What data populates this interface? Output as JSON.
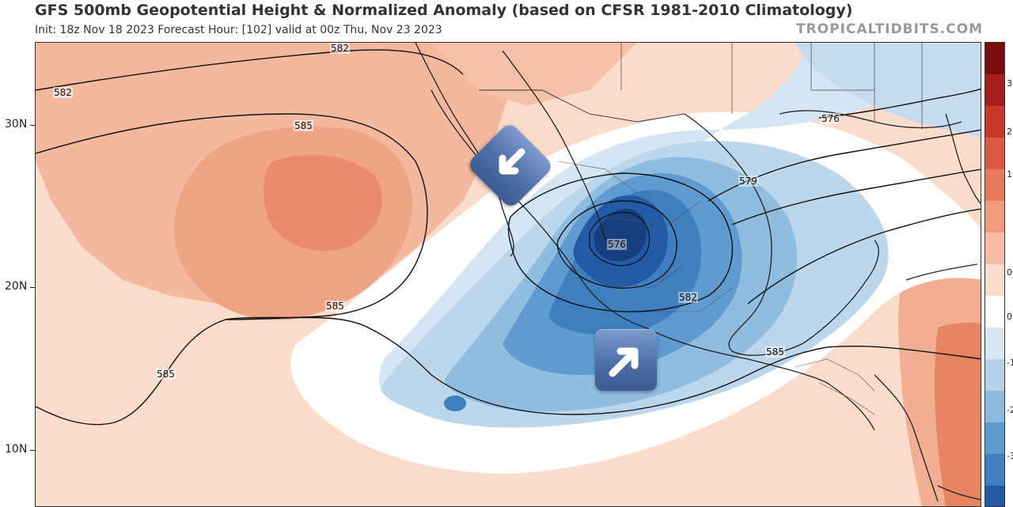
{
  "header": {
    "title": "GFS 500mb Geopotential Height & Normalized Anomaly (based on CFSR 1981-2010 Climatology)",
    "subtitle": "Init: 18z Nov 18 2023   Forecast Hour: [102]   valid at 00z Thu, Nov 23 2023",
    "credit": "TROPICALTIDBITS.COM"
  },
  "map": {
    "lat_labels": [
      "30N",
      "20N",
      "10N"
    ],
    "contour_labels": [
      "582",
      "582",
      "585",
      "585",
      "585",
      "585",
      "582",
      "579",
      "576",
      "576"
    ],
    "anomaly_colors": {
      "strong_positive": "#e07a5f",
      "positive": "#f2b49a",
      "weak_positive": "#fbd9c7",
      "neutral": "#ffffff",
      "weak_negative": "#cfe3f1",
      "negative": "#8fbde0",
      "strong_negative": "#3f80c1",
      "extreme_negative": "#1b4a8f"
    }
  },
  "colorbar": {
    "tick_labels": [
      "3",
      "2",
      "1",
      "0",
      "0",
      "-1",
      "-2",
      "-3"
    ]
  },
  "icons": {
    "arrow_southwest": "south-west-arrow-icon",
    "arrow_northeast": "north-east-arrow-icon"
  }
}
